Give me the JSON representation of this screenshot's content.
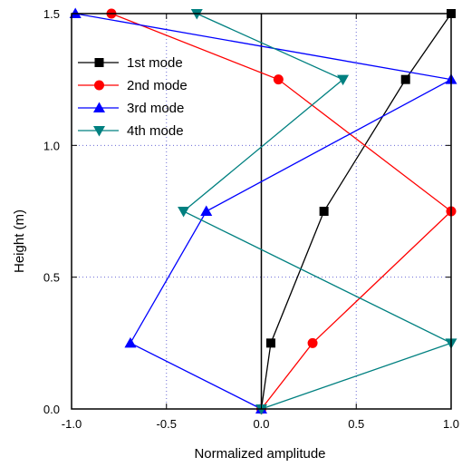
{
  "chart_data": {
    "type": "line",
    "xlabel": "Normalized amplitude",
    "ylabel": "Height (m)",
    "xlim": [
      -1.0,
      1.0
    ],
    "ylim": [
      0.0,
      1.5
    ],
    "x_ticks": [
      -1.0,
      -0.5,
      0.0,
      0.5,
      1.0
    ],
    "x_tick_labels": [
      "-1.0",
      "-0.5",
      "0.0",
      "0.5",
      "1.0"
    ],
    "y_ticks": [
      0.0,
      0.5,
      1.0,
      1.5
    ],
    "y_tick_labels": [
      "0.0",
      "0.5",
      "1.0",
      "1.5"
    ],
    "grid": "dotted vertical at x = -0.5 and 0.5",
    "legend_position": "upper-left",
    "series": [
      {
        "name": "1st mode",
        "color": "#000000",
        "marker": "square",
        "points": [
          {
            "x": 0.0,
            "y": 0.0
          },
          {
            "x": 0.05,
            "y": 0.25
          },
          {
            "x": 0.33,
            "y": 0.75
          },
          {
            "x": 0.76,
            "y": 1.25
          },
          {
            "x": 1.0,
            "y": 1.5
          }
        ]
      },
      {
        "name": "2nd mode",
        "color": "#ff0000",
        "marker": "circle",
        "points": [
          {
            "x": 0.0,
            "y": 0.0
          },
          {
            "x": 0.27,
            "y": 0.25
          },
          {
            "x": 1.0,
            "y": 0.75
          },
          {
            "x": 0.09,
            "y": 1.25
          },
          {
            "x": -0.79,
            "y": 1.5
          }
        ]
      },
      {
        "name": "3rd mode",
        "color": "#0000ff",
        "marker": "triangle-up",
        "points": [
          {
            "x": 0.0,
            "y": 0.0
          },
          {
            "x": -0.69,
            "y": 0.25
          },
          {
            "x": -0.29,
            "y": 0.75
          },
          {
            "x": 1.0,
            "y": 1.25
          },
          {
            "x": -0.98,
            "y": 1.5
          }
        ]
      },
      {
        "name": "4th mode",
        "color": "#008080",
        "marker": "triangle-down",
        "points": [
          {
            "x": 0.0,
            "y": 0.0
          },
          {
            "x": 1.0,
            "y": 0.25
          },
          {
            "x": -0.41,
            "y": 0.75
          },
          {
            "x": 0.43,
            "y": 1.25
          },
          {
            "x": -0.34,
            "y": 1.5
          }
        ]
      }
    ]
  }
}
